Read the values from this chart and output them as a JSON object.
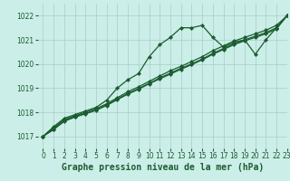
{
  "title": "Graphe pression niveau de la mer (hPa)",
  "background_color": "#cceee8",
  "grid_color": "#aad4cc",
  "line_color": "#1a5c30",
  "xlim": [
    -0.5,
    23
  ],
  "ylim": [
    1016.5,
    1022.5
  ],
  "yticks": [
    1017,
    1018,
    1019,
    1020,
    1021,
    1022
  ],
  "xticks": [
    0,
    1,
    2,
    3,
    4,
    5,
    6,
    7,
    8,
    9,
    10,
    11,
    12,
    13,
    14,
    15,
    16,
    17,
    18,
    19,
    20,
    21,
    22,
    23
  ],
  "series": [
    [
      1017.0,
      1017.4,
      1017.75,
      1017.9,
      1018.05,
      1018.2,
      1018.5,
      1019.0,
      1019.35,
      1019.6,
      1020.3,
      1020.8,
      1021.1,
      1021.5,
      1021.5,
      1021.6,
      1021.1,
      1020.7,
      1020.9,
      1021.0,
      1020.4,
      1021.0,
      1021.5,
      1022.0
    ],
    [
      1017.0,
      1017.35,
      1017.7,
      1017.85,
      1018.0,
      1018.15,
      1018.35,
      1018.6,
      1018.85,
      1019.05,
      1019.28,
      1019.5,
      1019.72,
      1019.9,
      1020.1,
      1020.3,
      1020.55,
      1020.75,
      1020.95,
      1021.1,
      1021.25,
      1021.4,
      1021.6,
      1022.0
    ],
    [
      1017.0,
      1017.3,
      1017.65,
      1017.82,
      1017.95,
      1018.1,
      1018.3,
      1018.55,
      1018.78,
      1018.98,
      1019.2,
      1019.42,
      1019.62,
      1019.82,
      1020.0,
      1020.2,
      1020.44,
      1020.64,
      1020.84,
      1021.0,
      1021.15,
      1021.3,
      1021.5,
      1022.0
    ],
    [
      1017.0,
      1017.28,
      1017.62,
      1017.8,
      1017.93,
      1018.08,
      1018.28,
      1018.52,
      1018.75,
      1018.95,
      1019.18,
      1019.38,
      1019.58,
      1019.78,
      1019.97,
      1020.17,
      1020.4,
      1020.6,
      1020.8,
      1020.96,
      1021.1,
      1021.25,
      1021.45,
      1022.0
    ]
  ],
  "marker": "D",
  "markersize": 2.2,
  "linewidth": 0.9,
  "title_fontsize": 7,
  "tick_fontsize": 5.5
}
